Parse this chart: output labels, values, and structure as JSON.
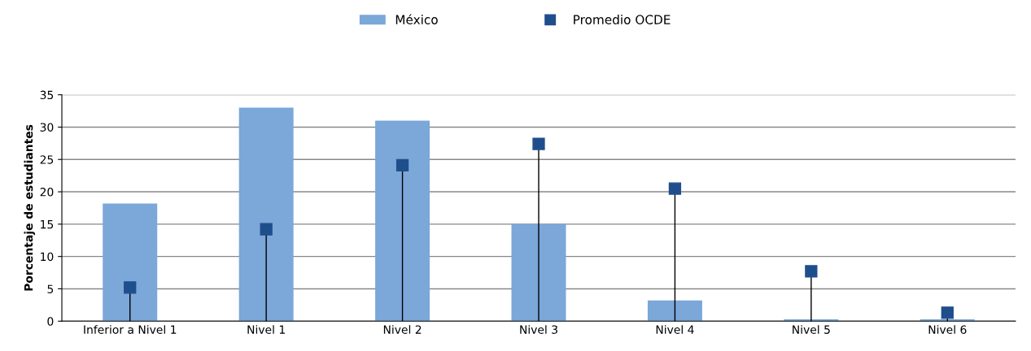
{
  "chart_data": {
    "type": "bar",
    "ylabel": "Porcentaje de estudiantes",
    "categories": [
      "Inferior a Nivel 1",
      "Nivel 1",
      "Nivel 2",
      "Nivel 3",
      "Nivel 4",
      "Nivel 5",
      "Nivel 6"
    ],
    "series": [
      {
        "name": "México",
        "color": "#7ba7d9",
        "values": [
          18.2,
          33.0,
          31.0,
          15.0,
          3.2,
          0.3,
          0.3
        ]
      },
      {
        "name": "Promedio OCDE",
        "type": "lollipop",
        "color": "#1f4e8c",
        "marker": "square",
        "values": [
          5.2,
          14.2,
          24.1,
          27.4,
          20.5,
          7.7,
          1.3
        ]
      }
    ],
    "ylim": [
      0,
      35
    ],
    "yticks": [
      0,
      5,
      10,
      15,
      20,
      25,
      30,
      35
    ],
    "grid": "y",
    "legend": "top"
  }
}
